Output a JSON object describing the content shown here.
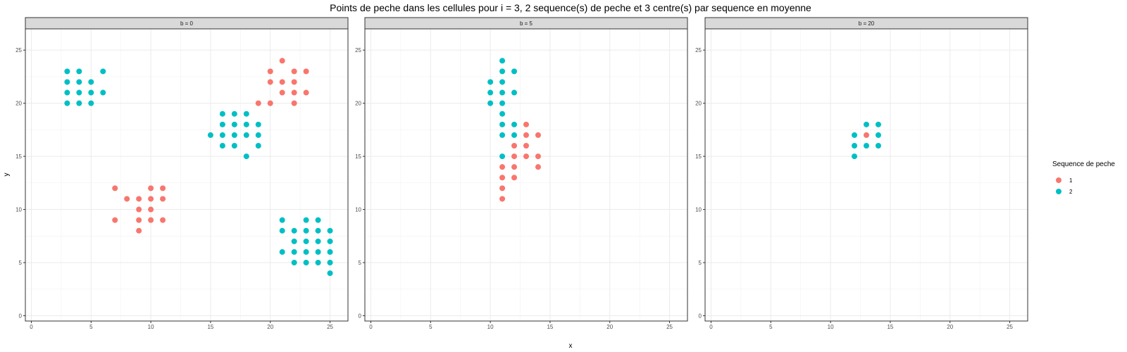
{
  "chart_data": {
    "type": "scatter",
    "title": "Points de peche dans les cellules pour i = 3, 2 sequence(s) de peche et 3 centre(s) par sequence en moyenne",
    "xlabel": "x",
    "ylabel": "y",
    "xlim": [
      -0.5,
      26.5
    ],
    "ylim": [
      -0.5,
      27
    ],
    "x_ticks": [
      0,
      5,
      10,
      15,
      20,
      25
    ],
    "y_ticks": [
      0,
      5,
      10,
      15,
      20,
      25
    ],
    "grid": true,
    "legend": {
      "title": "Sequence de peche",
      "placement": "right",
      "entries": [
        {
          "label": "1",
          "color": "#F8766D"
        },
        {
          "label": "2",
          "color": "#00BFC4"
        }
      ]
    },
    "panels": [
      {
        "label": "b = 0",
        "series": [
          {
            "name": "1",
            "points": [
              [
                7,
                12
              ],
              [
                7,
                9
              ],
              [
                8,
                11
              ],
              [
                9,
                11
              ],
              [
                9,
                10
              ],
              [
                9,
                9
              ],
              [
                9,
                8
              ],
              [
                10,
                12
              ],
              [
                10,
                11
              ],
              [
                10,
                10
              ],
              [
                10,
                9
              ],
              [
                11,
                12
              ],
              [
                11,
                11
              ],
              [
                11,
                9
              ],
              [
                19,
                20
              ],
              [
                20,
                23
              ],
              [
                20,
                22
              ],
              [
                20,
                20
              ],
              [
                21,
                24
              ],
              [
                21,
                22
              ],
              [
                21,
                21
              ],
              [
                22,
                23
              ],
              [
                22,
                22
              ],
              [
                22,
                21
              ],
              [
                22,
                20
              ],
              [
                23,
                23
              ],
              [
                23,
                21
              ]
            ]
          },
          {
            "name": "2",
            "points": [
              [
                3,
                23
              ],
              [
                3,
                22
              ],
              [
                3,
                21
              ],
              [
                3,
                20
              ],
              [
                4,
                23
              ],
              [
                4,
                22
              ],
              [
                4,
                21
              ],
              [
                4,
                20
              ],
              [
                5,
                22
              ],
              [
                5,
                21
              ],
              [
                5,
                20
              ],
              [
                6,
                23
              ],
              [
                6,
                21
              ],
              [
                15,
                17
              ],
              [
                16,
                19
              ],
              [
                16,
                18
              ],
              [
                16,
                17
              ],
              [
                16,
                16
              ],
              [
                17,
                19
              ],
              [
                17,
                18
              ],
              [
                17,
                17
              ],
              [
                17,
                16
              ],
              [
                18,
                19
              ],
              [
                18,
                18
              ],
              [
                18,
                17
              ],
              [
                18,
                15
              ],
              [
                19,
                18
              ],
              [
                19,
                17
              ],
              [
                19,
                16
              ],
              [
                21,
                9
              ],
              [
                21,
                8
              ],
              [
                21,
                6
              ],
              [
                22,
                8
              ],
              [
                22,
                7
              ],
              [
                22,
                6
              ],
              [
                22,
                5
              ],
              [
                23,
                9
              ],
              [
                23,
                8
              ],
              [
                23,
                7
              ],
              [
                23,
                6
              ],
              [
                23,
                5
              ],
              [
                24,
                9
              ],
              [
                24,
                8
              ],
              [
                24,
                7
              ],
              [
                24,
                6
              ],
              [
                24,
                5
              ],
              [
                25,
                8
              ],
              [
                25,
                7
              ],
              [
                25,
                6
              ],
              [
                25,
                5
              ],
              [
                25,
                4
              ]
            ]
          }
        ]
      },
      {
        "label": "b = 5",
        "series": [
          {
            "name": "1",
            "points": [
              [
                11,
                14
              ],
              [
                11,
                13
              ],
              [
                11,
                12
              ],
              [
                11,
                11
              ],
              [
                12,
                16
              ],
              [
                12,
                15
              ],
              [
                12,
                14
              ],
              [
                12,
                13
              ],
              [
                13,
                18
              ],
              [
                13,
                17
              ],
              [
                13,
                16
              ],
              [
                13,
                15
              ],
              [
                14,
                17
              ],
              [
                14,
                15
              ],
              [
                14,
                14
              ]
            ]
          },
          {
            "name": "2",
            "points": [
              [
                10,
                22
              ],
              [
                10,
                21
              ],
              [
                10,
                20
              ],
              [
                11,
                24
              ],
              [
                11,
                23
              ],
              [
                11,
                22
              ],
              [
                11,
                21
              ],
              [
                11,
                20
              ],
              [
                11,
                19
              ],
              [
                11,
                18
              ],
              [
                11,
                17
              ],
              [
                11,
                15
              ],
              [
                12,
                23
              ],
              [
                12,
                21
              ],
              [
                12,
                18
              ],
              [
                12,
                17
              ]
            ]
          }
        ]
      },
      {
        "label": "b = 20",
        "series": [
          {
            "name": "1",
            "points": [
              [
                13,
                17
              ]
            ]
          },
          {
            "name": "2",
            "points": [
              [
                12,
                17
              ],
              [
                12,
                16
              ],
              [
                12,
                15
              ],
              [
                13,
                18
              ],
              [
                13,
                16
              ],
              [
                14,
                18
              ],
              [
                14,
                17
              ],
              [
                14,
                16
              ]
            ]
          }
        ]
      }
    ]
  }
}
